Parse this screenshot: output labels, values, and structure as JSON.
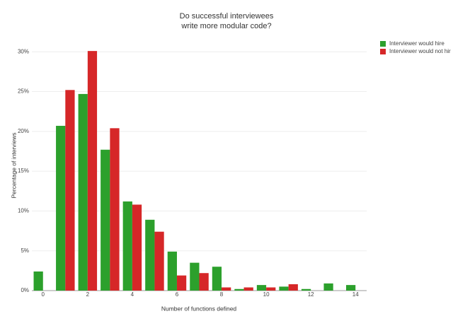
{
  "chart_data": {
    "type": "bar",
    "title": [
      "Do successful interviewees",
      "write more modular code?"
    ],
    "x_label": "Number of functions defined",
    "y_label": "Percentage of interviews",
    "x": [
      0,
      1,
      2,
      3,
      4,
      5,
      6,
      7,
      8,
      9,
      10,
      11,
      12,
      13,
      14
    ],
    "series": [
      {
        "name": "Interviewer would hire",
        "color": "#2ca02c",
        "values": [
          2.4,
          20.7,
          24.7,
          17.7,
          11.2,
          8.9,
          4.9,
          3.5,
          3.0,
          0.2,
          0.7,
          0.5,
          0.2,
          0.9,
          0.7
        ]
      },
      {
        "name": "Interviewer would not hir",
        "color": "#d62728",
        "values": [
          0,
          25.2,
          30.1,
          20.4,
          10.8,
          7.4,
          1.9,
          2.2,
          0.4,
          0.4,
          0.4,
          0.8,
          0,
          0,
          0
        ]
      }
    ],
    "xlim": [
      -0.5,
      14.5
    ],
    "xticks": [
      0,
      2,
      4,
      6,
      8,
      10,
      12,
      14
    ],
    "ylim": [
      0,
      31
    ],
    "yticks": [
      {
        "value": 0,
        "label": "0%"
      },
      {
        "value": 5,
        "label": "5%"
      },
      {
        "value": 10,
        "label": "10%"
      },
      {
        "value": 15,
        "label": "15%"
      },
      {
        "value": 20,
        "label": "20%"
      },
      {
        "value": 25,
        "label": "25%"
      },
      {
        "value": 30,
        "label": "30%"
      }
    ],
    "grid": true,
    "legend": "top-right"
  }
}
